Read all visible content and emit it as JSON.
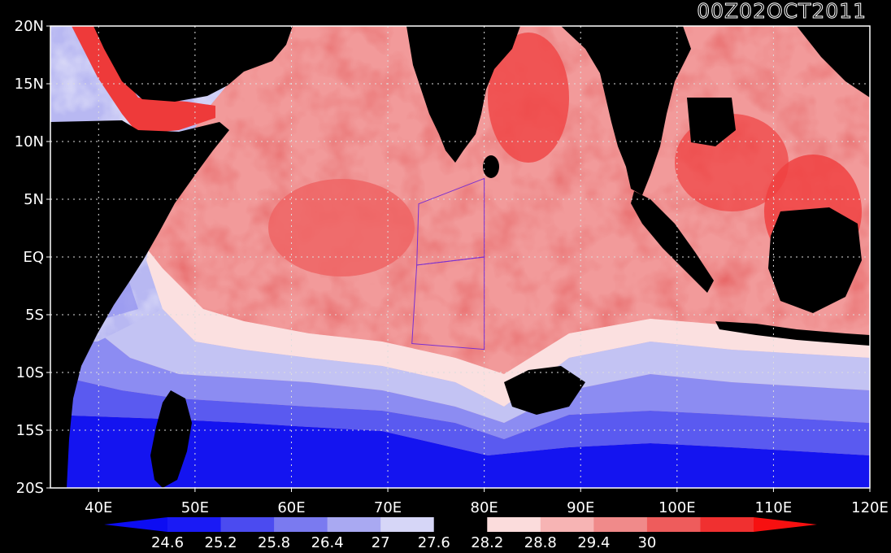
{
  "title": "00Z02OCT2011",
  "map": {
    "lon_min": 35,
    "lon_max": 120,
    "lat_min": -20,
    "lat_max": 20,
    "grid": true,
    "x_tick_values": [
      40,
      50,
      60,
      70,
      80,
      90,
      100,
      110,
      120
    ],
    "x_tick_labels": [
      "40E",
      "50E",
      "60E",
      "70E",
      "80E",
      "90E",
      "100E",
      "110E",
      "120E"
    ],
    "y_tick_values": [
      20,
      15,
      10,
      5,
      0,
      -5,
      -10,
      -15,
      -20
    ],
    "y_tick_labels": [
      "20N",
      "15N",
      "10N",
      "5N",
      "EQ",
      "5S",
      "10S",
      "15S",
      "20S"
    ],
    "land_color": "#000000",
    "box": {
      "north": [
        [
          73.2,
          4.6
        ],
        [
          80,
          6.8
        ],
        [
          80,
          0
        ],
        [
          73.0,
          -0.7
        ]
      ],
      "south": [
        [
          73.0,
          -0.7
        ],
        [
          80,
          0
        ],
        [
          80,
          -8.0
        ],
        [
          72.5,
          -7.5
        ]
      ],
      "color": "#7a2fd0"
    }
  },
  "colorbar": {
    "labels": [
      "24.6",
      "25.2",
      "25.8",
      "26.4",
      "27",
      "27.6",
      "28.2",
      "28.8",
      "29.4",
      "30"
    ],
    "colors": [
      "#0d0df2",
      "#1a1af5",
      "#4b4bf0",
      "#7a7af0",
      "#a9a9f2",
      "#d6d6f7",
      "#000000",
      "#fbdcdc",
      "#f7b4b4",
      "#f08a8a",
      "#ee5c5c",
      "#f03030",
      "#f71010"
    ]
  }
}
